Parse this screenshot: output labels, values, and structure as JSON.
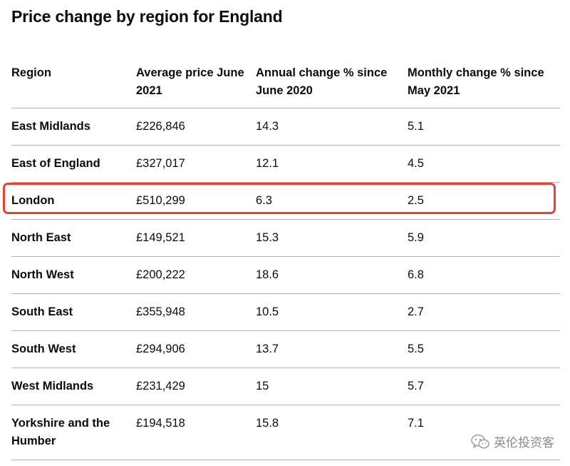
{
  "title": "Price change by region for England",
  "table": {
    "headers": [
      "Region",
      "Average price June 2021",
      "Annual change % since June 2020",
      "Monthly change % since May 2021"
    ],
    "rows": [
      [
        "East Midlands",
        "£226,846",
        "14.3",
        "5.1"
      ],
      [
        "East of England",
        "£327,017",
        "12.1",
        "4.5"
      ],
      [
        "London",
        "£510,299",
        "6.3",
        "2.5"
      ],
      [
        "North East",
        "£149,521",
        "15.3",
        "5.9"
      ],
      [
        "North West",
        "£200,222",
        "18.6",
        "6.8"
      ],
      [
        "South East",
        "£355,948",
        "10.5",
        "2.7"
      ],
      [
        "South West",
        "£294,906",
        "13.7",
        "5.5"
      ],
      [
        "West Midlands",
        "£231,429",
        "15",
        "5.7"
      ],
      [
        "Yorkshire and the Humber",
        "£194,518",
        "15.8",
        "7.1"
      ]
    ]
  },
  "highlight_color": "#e8432f",
  "watermark": {
    "icon": "wechat-icon",
    "text": "英伦投资客"
  }
}
